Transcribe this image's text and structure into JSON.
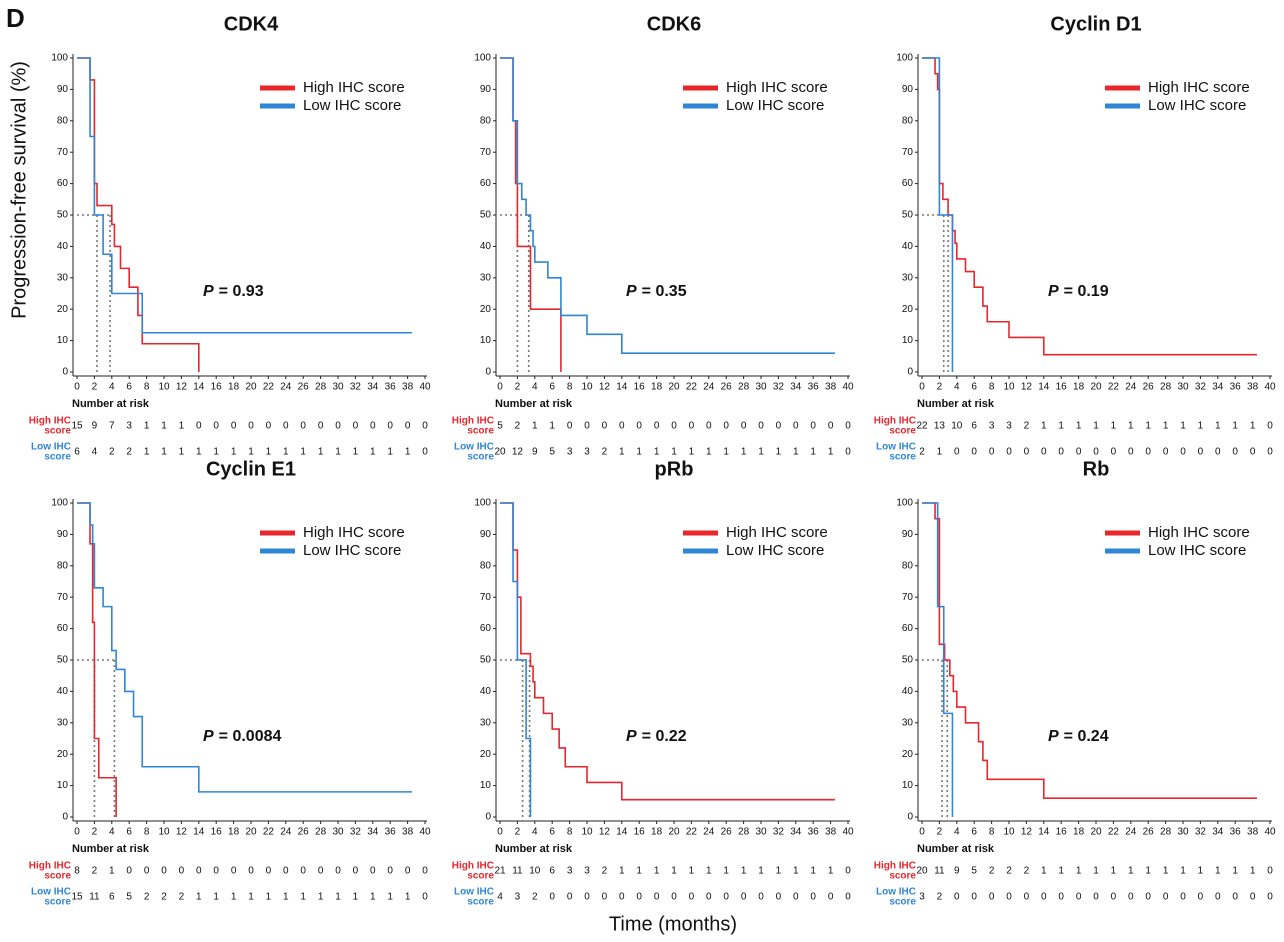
{
  "panel_label": "D",
  "y_label": "Progression-free survival (%)",
  "x_label": "Time (months)",
  "chart_data": [
    {
      "type": "step",
      "title": "CDK4",
      "xlim": [
        0,
        40
      ],
      "ylim": [
        0,
        100
      ],
      "xticks": [
        0,
        2,
        4,
        6,
        8,
        10,
        12,
        14,
        16,
        18,
        20,
        22,
        24,
        26,
        28,
        30,
        32,
        34,
        36,
        38,
        40
      ],
      "yticks": [
        0,
        10,
        20,
        30,
        40,
        50,
        60,
        70,
        80,
        90,
        100
      ],
      "median_level": 50,
      "series": [
        {
          "name": "High IHC score",
          "color": "#e8262b",
          "x": [
            0,
            1.5,
            2,
            2.3,
            4,
            4.3,
            5,
            6,
            7,
            7.5,
            14
          ],
          "values": [
            100,
            93,
            60,
            53,
            47,
            40,
            33,
            27,
            18,
            9,
            0
          ],
          "median": 3.8
        },
        {
          "name": "Low IHC score",
          "color": "#2f86d6",
          "x": [
            0,
            1.5,
            2,
            3,
            4,
            7.5,
            38.5
          ],
          "values": [
            100,
            75,
            50,
            37.5,
            25,
            12.5,
            12.5
          ],
          "median": 2.3
        }
      ],
      "annotation": {
        "symbol": "P",
        "text": "= 0.93"
      },
      "risk_table": {
        "title": "Number at risk",
        "rows": [
          {
            "label": [
              "High IHC",
              "score"
            ],
            "values": [
              15,
              9,
              7,
              3,
              1,
              1,
              1,
              0,
              0,
              0,
              0,
              0,
              0,
              0,
              0,
              0,
              0,
              0,
              0,
              0,
              0
            ]
          },
          {
            "label": [
              "Low IHC",
              "score"
            ],
            "values": [
              6,
              4,
              2,
              2,
              1,
              1,
              1,
              1,
              1,
              1,
              1,
              1,
              1,
              1,
              1,
              1,
              1,
              1,
              1,
              1,
              0
            ]
          }
        ]
      }
    },
    {
      "type": "step",
      "title": "CDK6",
      "xlim": [
        0,
        40
      ],
      "ylim": [
        0,
        100
      ],
      "xticks": [
        0,
        2,
        4,
        6,
        8,
        10,
        12,
        14,
        16,
        18,
        20,
        22,
        24,
        26,
        28,
        30,
        32,
        34,
        36,
        38,
        40
      ],
      "yticks": [
        0,
        10,
        20,
        30,
        40,
        50,
        60,
        70,
        80,
        90,
        100
      ],
      "median_level": 50,
      "series": [
        {
          "name": "High IHC score",
          "color": "#e8262b",
          "x": [
            0,
            1.5,
            1.8,
            2,
            3.5,
            7
          ],
          "values": [
            100,
            80,
            60,
            40,
            20,
            0
          ],
          "median": 2
        },
        {
          "name": "Low IHC score",
          "color": "#2f86d6",
          "x": [
            0,
            1.5,
            2,
            2.5,
            3,
            3.5,
            3.8,
            4,
            5.5,
            7,
            10,
            14,
            38.5
          ],
          "values": [
            100,
            80,
            60,
            55,
            50,
            45,
            40,
            35,
            30,
            18,
            12,
            6,
            6
          ],
          "median": 3.3
        }
      ],
      "annotation": {
        "symbol": "P",
        "text": "= 0.35"
      },
      "risk_table": {
        "title": "Number at risk",
        "rows": [
          {
            "label": [
              "High IHC",
              "score"
            ],
            "values": [
              5,
              2,
              1,
              1,
              0,
              0,
              0,
              0,
              0,
              0,
              0,
              0,
              0,
              0,
              0,
              0,
              0,
              0,
              0,
              0,
              0
            ]
          },
          {
            "label": [
              "Low IHC",
              "score"
            ],
            "values": [
              20,
              12,
              9,
              5,
              3,
              3,
              2,
              1,
              1,
              1,
              1,
              1,
              1,
              1,
              1,
              1,
              1,
              1,
              1,
              1,
              0
            ]
          }
        ]
      }
    },
    {
      "type": "step",
      "title": "Cyclin D1",
      "xlim": [
        0,
        40
      ],
      "ylim": [
        0,
        100
      ],
      "xticks": [
        0,
        2,
        4,
        6,
        8,
        10,
        12,
        14,
        16,
        18,
        20,
        22,
        24,
        26,
        28,
        30,
        32,
        34,
        36,
        38,
        40
      ],
      "yticks": [
        0,
        10,
        20,
        30,
        40,
        50,
        60,
        70,
        80,
        90,
        100
      ],
      "median_level": 50,
      "series": [
        {
          "name": "High IHC score",
          "color": "#e8262b",
          "x": [
            0,
            1.5,
            1.8,
            2,
            2.4,
            3,
            3.5,
            3.8,
            4,
            5,
            6,
            7,
            7.5,
            10,
            14,
            38.5
          ],
          "values": [
            100,
            95,
            90,
            60,
            55,
            50,
            45,
            41,
            36,
            32,
            27,
            21,
            16,
            11,
            5.5,
            5.5
          ],
          "median": 3
        },
        {
          "name": "Low IHC score",
          "color": "#2f86d6",
          "x": [
            0,
            2,
            3.5
          ],
          "values": [
            100,
            50,
            0
          ],
          "median": 2.5
        }
      ],
      "annotation": {
        "symbol": "P",
        "text": "= 0.19"
      },
      "risk_table": {
        "title": "Number at risk",
        "rows": [
          {
            "label": [
              "High IHC",
              "score"
            ],
            "values": [
              22,
              13,
              10,
              6,
              3,
              3,
              2,
              1,
              1,
              1,
              1,
              1,
              1,
              1,
              1,
              1,
              1,
              1,
              1,
              1,
              0
            ]
          },
          {
            "label": [
              "Low IHC",
              "score"
            ],
            "values": [
              2,
              1,
              0,
              0,
              0,
              0,
              0,
              0,
              0,
              0,
              0,
              0,
              0,
              0,
              0,
              0,
              0,
              0,
              0,
              0,
              0
            ]
          }
        ]
      }
    },
    {
      "type": "step",
      "title": "Cyclin E1",
      "xlim": [
        0,
        40
      ],
      "ylim": [
        0,
        100
      ],
      "xticks": [
        0,
        2,
        4,
        6,
        8,
        10,
        12,
        14,
        16,
        18,
        20,
        22,
        24,
        26,
        28,
        30,
        32,
        34,
        36,
        38,
        40
      ],
      "yticks": [
        0,
        10,
        20,
        30,
        40,
        50,
        60,
        70,
        80,
        90,
        100
      ],
      "median_level": 50,
      "series": [
        {
          "name": "High IHC score",
          "color": "#e8262b",
          "x": [
            0,
            1.5,
            1.8,
            2,
            2.5,
            4.5
          ],
          "values": [
            100,
            87,
            62,
            25,
            12.5,
            0
          ],
          "median": 2
        },
        {
          "name": "Low IHC score",
          "color": "#2f86d6",
          "x": [
            0,
            1.5,
            1.8,
            2,
            3,
            4,
            4.5,
            5.5,
            6.5,
            7.5,
            14,
            38.5
          ],
          "values": [
            100,
            93,
            87,
            73,
            67,
            53,
            47,
            40,
            32,
            16,
            8,
            8
          ],
          "median": 4.3
        }
      ],
      "annotation": {
        "symbol": "P",
        "text": "= 0.0084"
      },
      "risk_table": {
        "title": "Number at risk",
        "rows": [
          {
            "label": [
              "High IHC",
              "score"
            ],
            "values": [
              8,
              2,
              1,
              0,
              0,
              0,
              0,
              0,
              0,
              0,
              0,
              0,
              0,
              0,
              0,
              0,
              0,
              0,
              0,
              0,
              0
            ]
          },
          {
            "label": [
              "Low IHC",
              "score"
            ],
            "values": [
              15,
              11,
              6,
              5,
              2,
              2,
              2,
              1,
              1,
              1,
              1,
              1,
              1,
              1,
              1,
              1,
              1,
              1,
              1,
              1,
              0
            ]
          }
        ]
      }
    },
    {
      "type": "step",
      "title": "pRb",
      "xlim": [
        0,
        40
      ],
      "ylim": [
        0,
        100
      ],
      "xticks": [
        0,
        2,
        4,
        6,
        8,
        10,
        12,
        14,
        16,
        18,
        20,
        22,
        24,
        26,
        28,
        30,
        32,
        34,
        36,
        38,
        40
      ],
      "yticks": [
        0,
        10,
        20,
        30,
        40,
        50,
        60,
        70,
        80,
        90,
        100
      ],
      "median_level": 50,
      "series": [
        {
          "name": "High IHC score",
          "color": "#e8262b",
          "x": [
            0,
            1.5,
            2,
            2.4,
            3.5,
            3.8,
            4,
            5,
            6,
            6.8,
            7.5,
            10,
            14,
            38.5
          ],
          "values": [
            100,
            85,
            70,
            52,
            48,
            43,
            38,
            33,
            28,
            22,
            16,
            11,
            5.5,
            5.5
          ],
          "median": 3.4
        },
        {
          "name": "Low IHC score",
          "color": "#2f86d6",
          "x": [
            0,
            1.5,
            2,
            3,
            3.5
          ],
          "values": [
            100,
            75,
            50,
            25,
            0
          ],
          "median": 2.6
        }
      ],
      "annotation": {
        "symbol": "P",
        "text": "= 0.22"
      },
      "risk_table": {
        "title": "Number at risk",
        "rows": [
          {
            "label": [
              "High IHC",
              "score"
            ],
            "values": [
              21,
              11,
              10,
              6,
              3,
              3,
              2,
              1,
              1,
              1,
              1,
              1,
              1,
              1,
              1,
              1,
              1,
              1,
              1,
              1,
              0
            ]
          },
          {
            "label": [
              "Low IHC",
              "score"
            ],
            "values": [
              4,
              3,
              2,
              0,
              0,
              0,
              0,
              0,
              0,
              0,
              0,
              0,
              0,
              0,
              0,
              0,
              0,
              0,
              0,
              0,
              0
            ]
          }
        ]
      }
    },
    {
      "type": "step",
      "title": "Rb",
      "xlim": [
        0,
        40
      ],
      "ylim": [
        0,
        100
      ],
      "xticks": [
        0,
        2,
        4,
        6,
        8,
        10,
        12,
        14,
        16,
        18,
        20,
        22,
        24,
        26,
        28,
        30,
        32,
        34,
        36,
        38,
        40
      ],
      "yticks": [
        0,
        10,
        20,
        30,
        40,
        50,
        60,
        70,
        80,
        90,
        100
      ],
      "median_level": 50,
      "series": [
        {
          "name": "High IHC score",
          "color": "#e8262b",
          "x": [
            0,
            1.5,
            2,
            2.6,
            3.2,
            3.6,
            4,
            5,
            6.5,
            7,
            7.5,
            14,
            38.5
          ],
          "values": [
            100,
            95,
            55,
            50,
            45,
            40,
            35,
            30,
            24,
            18,
            12,
            6,
            6
          ],
          "median": 2.9
        },
        {
          "name": "Low IHC score",
          "color": "#2f86d6",
          "x": [
            0,
            1.8,
            2.5,
            3.5
          ],
          "values": [
            100,
            67,
            33,
            0
          ],
          "median": 2.3
        }
      ],
      "annotation": {
        "symbol": "P",
        "text": "= 0.24"
      },
      "risk_table": {
        "title": "Number at risk",
        "rows": [
          {
            "label": [
              "High IHC",
              "score"
            ],
            "values": [
              20,
              11,
              9,
              5,
              2,
              2,
              2,
              1,
              1,
              1,
              1,
              1,
              1,
              1,
              1,
              1,
              1,
              1,
              1,
              1,
              0
            ]
          },
          {
            "label": [
              "Low IHC",
              "score"
            ],
            "values": [
              3,
              2,
              0,
              0,
              0,
              0,
              0,
              0,
              0,
              0,
              0,
              0,
              0,
              0,
              0,
              0,
              0,
              0,
              0,
              0,
              0
            ]
          }
        ]
      }
    }
  ]
}
